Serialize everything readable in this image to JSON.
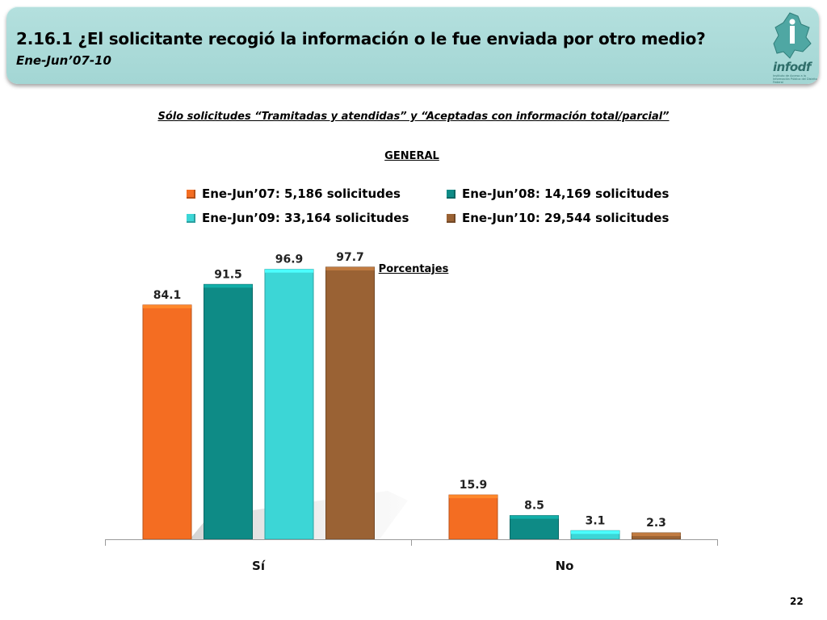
{
  "header": {
    "title": "2.16.1 ¿El solicitante recogió la información o le fue enviada por otro medio?",
    "subtitle": "Ene-Jun’07-10",
    "logo_text": "infodf",
    "logo_caption": "Instituto de Acceso a la Información Pública del Distrito Federal"
  },
  "scope_note": "Sólo solicitudes “Tramitadas y atendidas” y “Aceptadas con información total/parcial”",
  "section_label": "GENERAL",
  "legend": [
    {
      "label": "Ene-Jun’07: 5,186 solicitudes",
      "color": "#f46d22"
    },
    {
      "label": "Ene-Jun’08: 14,169 solicitudes",
      "color": "#0e8b86"
    },
    {
      "label": "Ene-Jun’09: 33,164 solicitudes",
      "color": "#3cd6d6"
    },
    {
      "label": "Ene-Jun’10: 29,544 solicitudes",
      "color": "#9a6234"
    }
  ],
  "unit_label": "Porcentajes",
  "page_number": "22",
  "chart_data": {
    "type": "bar",
    "title": "GENERAL",
    "ylabel": "Porcentajes",
    "xlabel": "",
    "categories": [
      "Sí",
      "No"
    ],
    "ylim": [
      0,
      100
    ],
    "grid": false,
    "legend_position": "top",
    "series": [
      {
        "name": "Ene-Jun’07: 5,186 solicitudes",
        "color": "#f46d22",
        "values": [
          84.1,
          15.9
        ],
        "labels": [
          "84.1",
          "15.9"
        ]
      },
      {
        "name": "Ene-Jun’08: 14,169 solicitudes",
        "color": "#0e8b86",
        "values": [
          91.5,
          8.5
        ],
        "labels": [
          "91.5",
          "8.5"
        ]
      },
      {
        "name": "Ene-Jun’09: 33,164 solicitudes",
        "color": "#3cd6d6",
        "values": [
          96.9,
          3.1
        ],
        "labels": [
          "96.9",
          "3.1"
        ]
      },
      {
        "name": "Ene-Jun’10: 29,544 solicitudes",
        "color": "#9a6234",
        "values": [
          97.7,
          2.3
        ],
        "labels": [
          "97.7",
          "2.3"
        ]
      }
    ]
  }
}
